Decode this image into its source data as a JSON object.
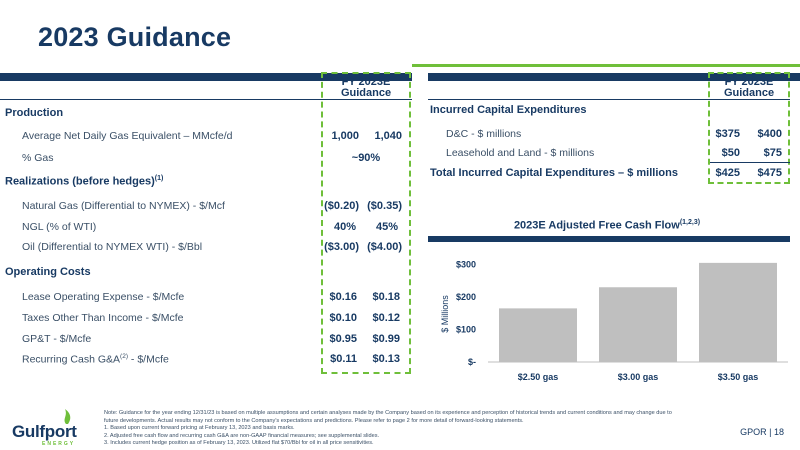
{
  "title": "2023 Guidance",
  "colors": {
    "navy": "#183a63",
    "green": "#6fbf3a",
    "bar_gray": "#bfbfbf"
  },
  "left_table": {
    "header": [
      "FY 2023E",
      "Guidance"
    ],
    "production": {
      "section": "Production",
      "rows": [
        {
          "label": "Average Net Daily Gas Equivalent – MMcfe/d",
          "low": "1,000",
          "high": "1,040"
        },
        {
          "label": "% Gas",
          "value": "~90%"
        }
      ]
    },
    "realizations": {
      "section": "Realizations (before hedges)",
      "sup": "(1)",
      "rows": [
        {
          "label": "Natural Gas (Differential to NYMEX) - $/Mcf",
          "low": "($0.20)",
          "high": "($0.35)"
        },
        {
          "label": "NGL (% of WTI)",
          "low": "40%",
          "high": "45%"
        },
        {
          "label": "Oil (Differential to NYMEX WTI) - $/Bbl",
          "low": "($3.00)",
          "high": "($4.00)"
        }
      ]
    },
    "operating": {
      "section": "Operating Costs",
      "rows": [
        {
          "label": "Lease Operating Expense - $/Mcfe",
          "low": "$0.16",
          "high": "$0.18"
        },
        {
          "label": "Taxes Other Than Income - $/Mcfe",
          "low": "$0.10",
          "high": "$0.12"
        },
        {
          "label": "GP&T - $/Mcfe",
          "low": "$0.95",
          "high": "$0.99"
        },
        {
          "label_pre": "Recurring Cash G&A",
          "label_sup": "(2)",
          "label_post": " - $/Mcfe",
          "low": "$0.11",
          "high": "$0.13"
        }
      ]
    }
  },
  "right_table": {
    "header": [
      "FY 2023E",
      "Guidance"
    ],
    "section": "Incurred Capital Expenditures",
    "rows": [
      {
        "label": "D&C - $ millions",
        "low": "$375",
        "high": "$400"
      },
      {
        "label": "Leasehold and Land - $ millions",
        "low": "$50",
        "high": "$75"
      }
    ],
    "total": {
      "label": "Total Incurred Capital Expenditures – $ millions",
      "low": "$425",
      "high": "$475"
    }
  },
  "chart_title": "2023E Adjusted Free Cash Flow",
  "chart_title_sup": "(1,2,3)",
  "chart_data": {
    "type": "bar",
    "title": "2023E Adjusted Free Cash Flow",
    "categories": [
      "$2.50 gas",
      "$3.00 gas",
      "$3.50 gas"
    ],
    "values": [
      165,
      230,
      305
    ],
    "ylabel": "$ Millions",
    "yticks": [
      "$-",
      "$100",
      "$200",
      "$300"
    ],
    "ytick_values": [
      0,
      100,
      200,
      300
    ],
    "ylim": [
      0,
      320
    ],
    "grid": false,
    "bar_color": "#bfbfbf"
  },
  "notes": [
    "Note: Guidance for the year ending 12/31/23 is based on multiple assumptions and certain analyses made by the Company based on its experience and perception of historical trends and current conditions and may change due to",
    "future developments. Actual results may not conform to the Company's expectations and predictions. Please refer to page 2 for more detail of forward-looking statements.",
    "1.    Based upon current forward pricing at February 13, 2023 and basis marks.",
    "2.    Adjusted free cash flow and recurring cash G&A are non-GAAP financial measures; see supplemental slides.",
    "3.    Includes current hedge position as of February 13, 2023. Utilized flat $70/Bbl for oil in all price sensitivities."
  ],
  "logo": {
    "name": "Gulfport",
    "sub": "ENERGY"
  },
  "footer": "GPOR | 18"
}
